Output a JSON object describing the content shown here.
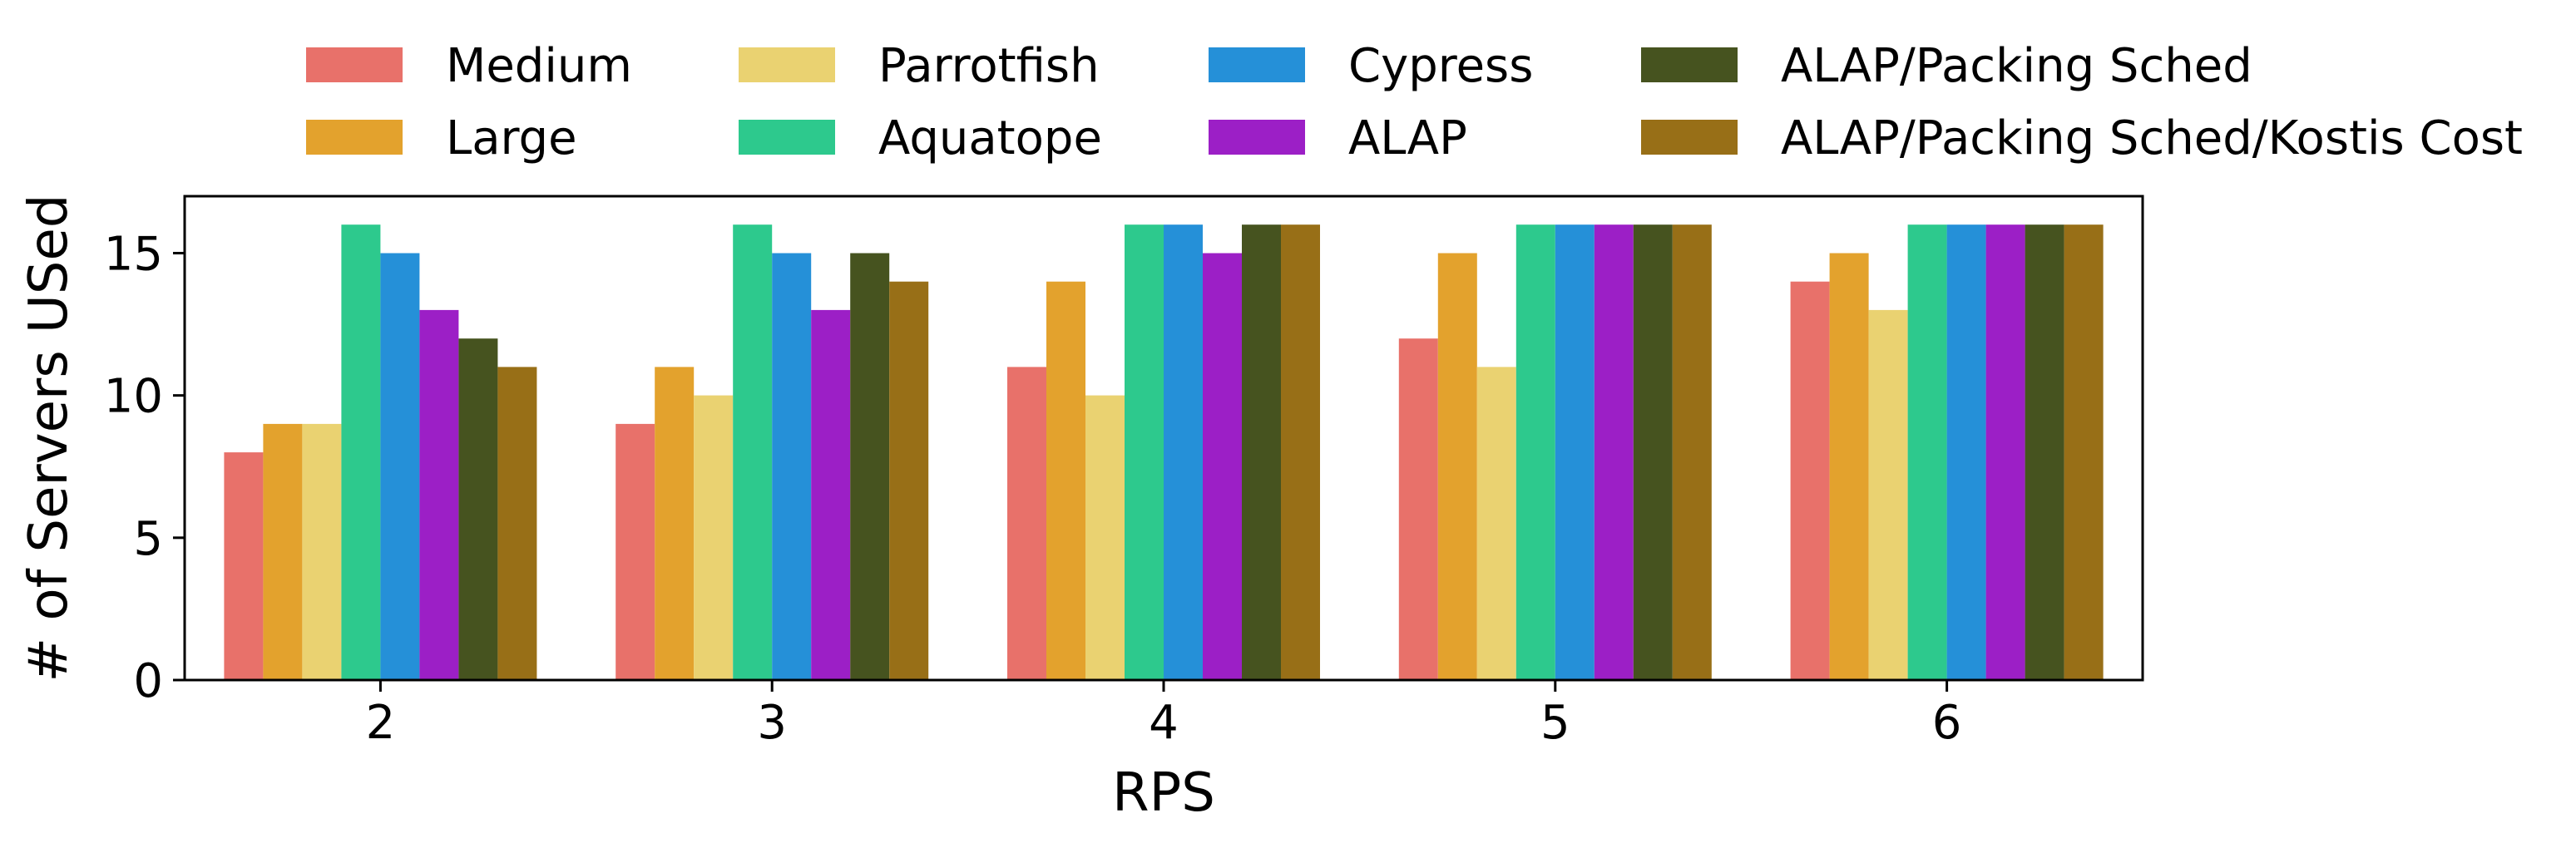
{
  "chart_data": {
    "type": "bar",
    "title": "",
    "xlabel": "RPS",
    "ylabel": "# of Servers USed",
    "categories": [
      "2",
      "3",
      "4",
      "5",
      "6"
    ],
    "ylim": [
      0,
      17
    ],
    "yticks": [
      0,
      5,
      10,
      15
    ],
    "grid": false,
    "legend_position": "top",
    "series": [
      {
        "name": "Medium",
        "color": "#e8716a",
        "values": [
          8,
          9,
          11,
          12,
          14
        ]
      },
      {
        "name": "Large",
        "color": "#e3a22d",
        "values": [
          9,
          11,
          14,
          15,
          15
        ]
      },
      {
        "name": "Parrotfish",
        "color": "#ead271",
        "values": [
          9,
          10,
          10,
          11,
          13
        ]
      },
      {
        "name": "Aquatope",
        "color": "#2dc98d",
        "values": [
          16,
          16,
          16,
          16,
          16
        ]
      },
      {
        "name": "Cypress",
        "color": "#2590d8",
        "values": [
          15,
          15,
          16,
          16,
          16
        ]
      },
      {
        "name": "ALAP",
        "color": "#9c1fc6",
        "values": [
          13,
          13,
          15,
          16,
          16
        ]
      },
      {
        "name": "ALAP/Packing Sched",
        "color": "#46531f",
        "values": [
          12,
          15,
          16,
          16,
          16
        ]
      },
      {
        "name": "ALAP/Packing Sched/Kostis Cost",
        "color": "#986f17",
        "values": [
          11,
          14,
          16,
          16,
          16
        ]
      }
    ]
  }
}
